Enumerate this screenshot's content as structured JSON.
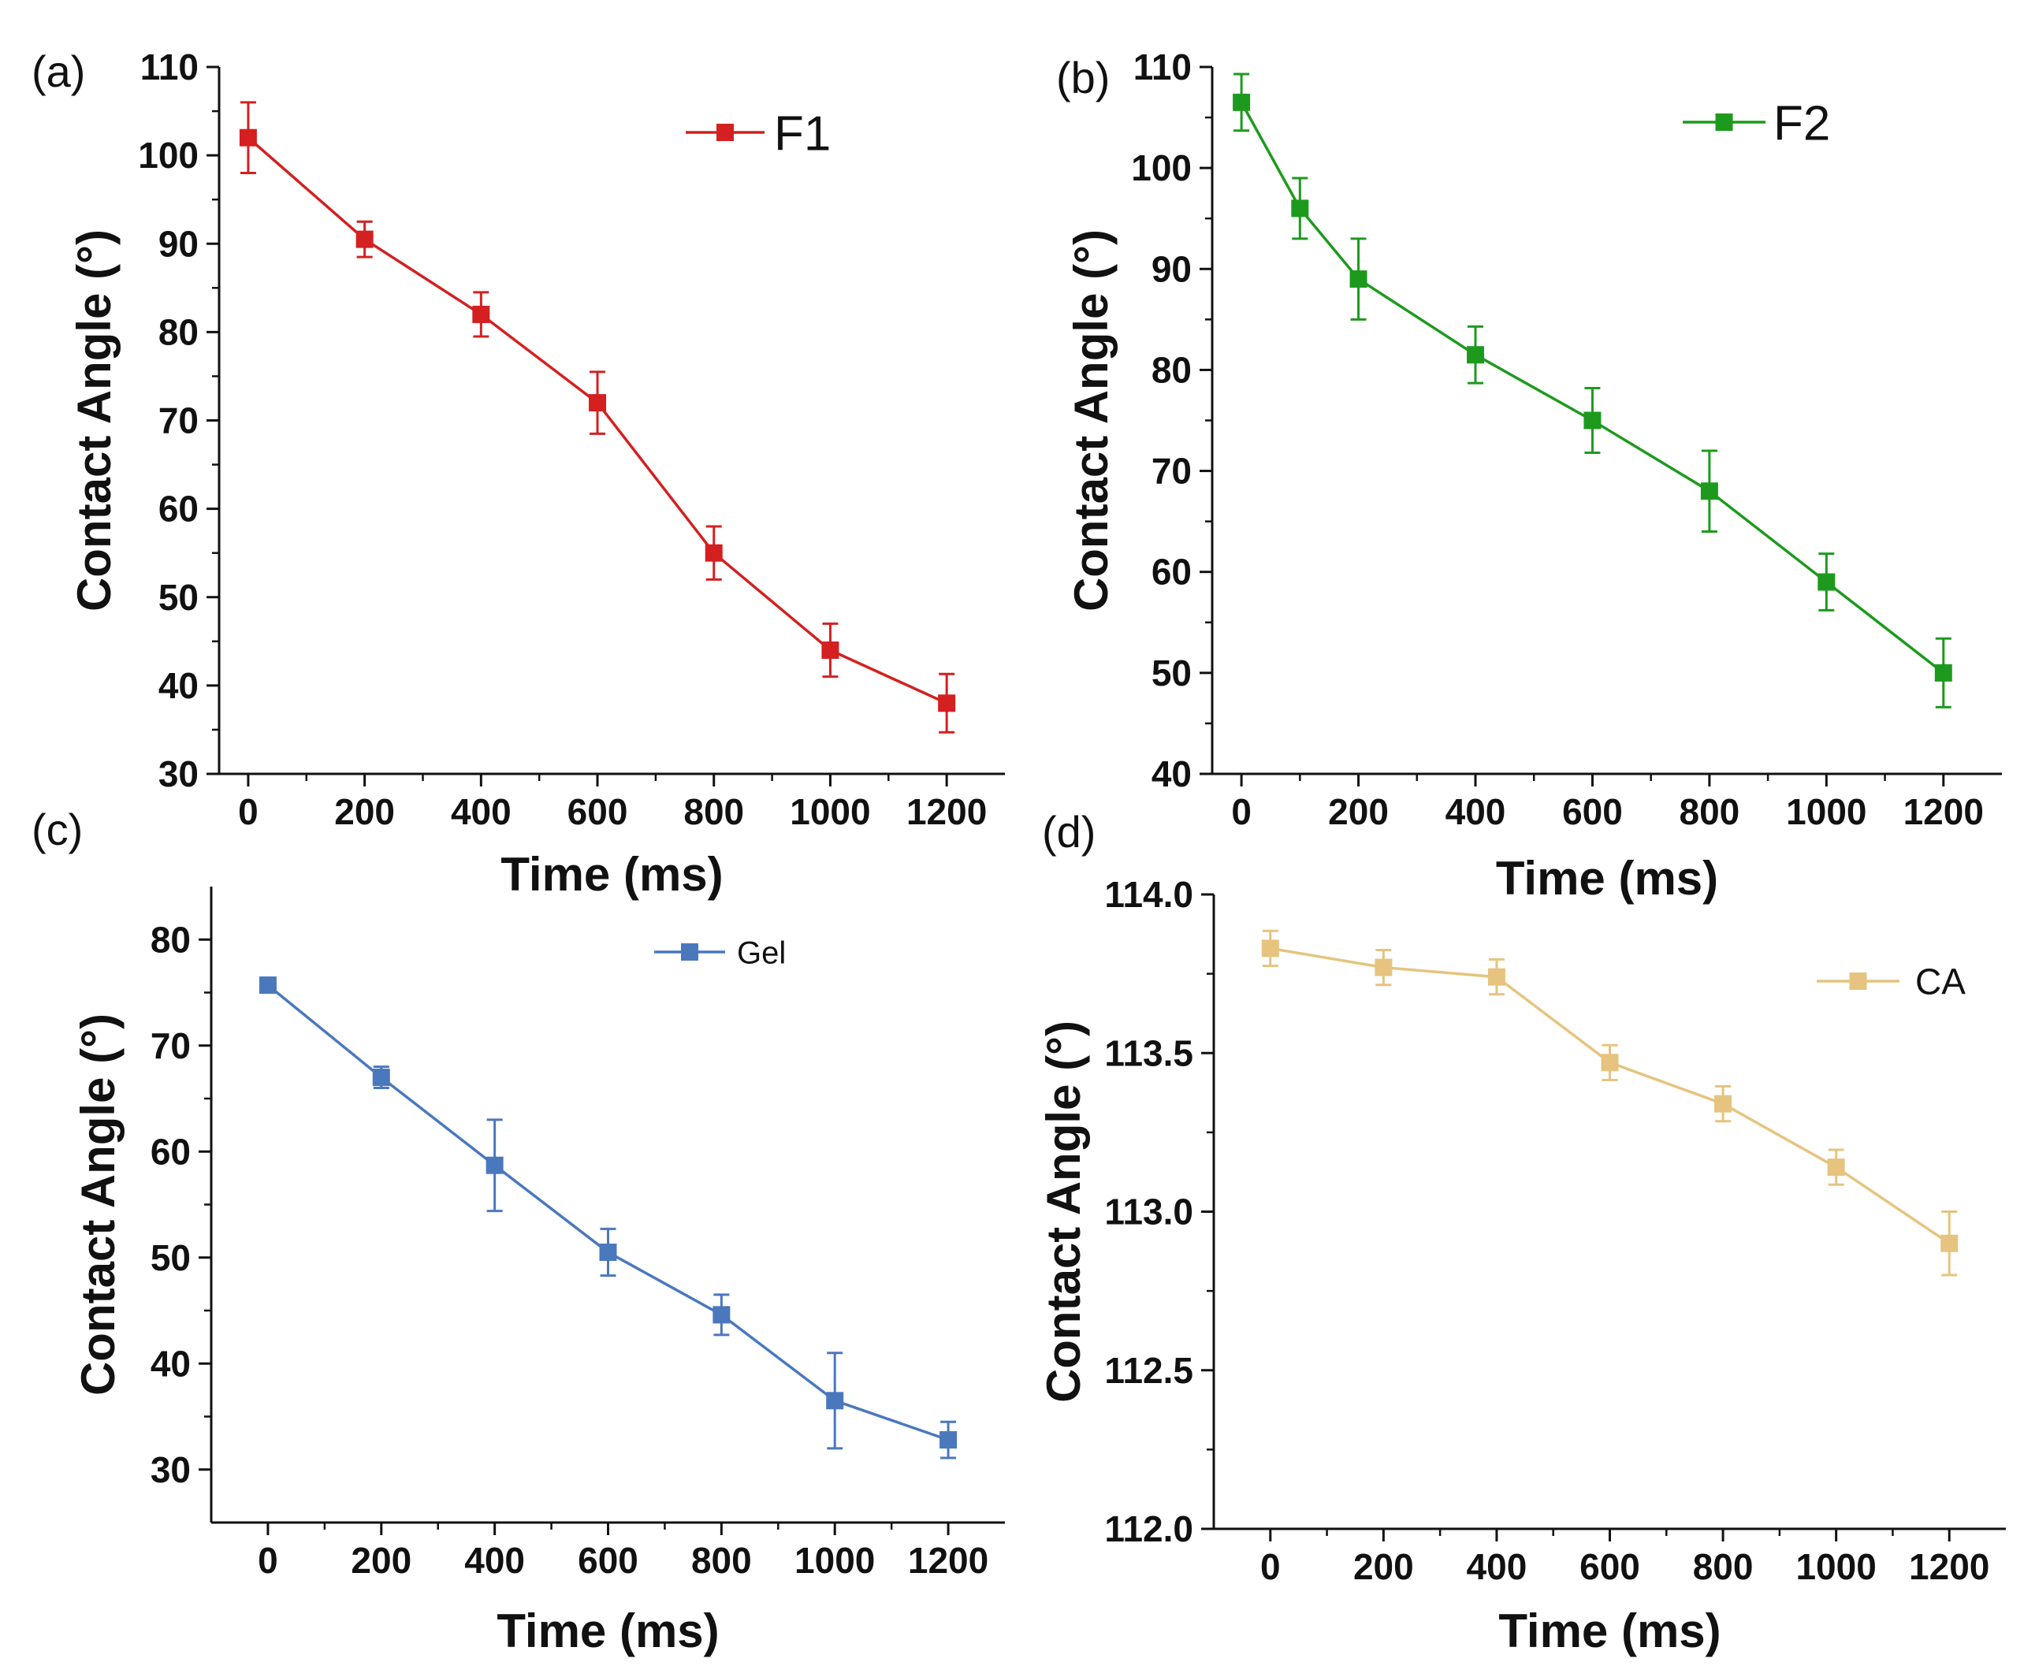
{
  "chart_data": [
    {
      "panel_label": "(a)",
      "type": "line",
      "color": "#d42020",
      "series": [
        {
          "name": "F1",
          "x": [
            0,
            200,
            400,
            600,
            800,
            1000,
            1200
          ],
          "y": [
            102,
            90.5,
            82,
            72,
            55,
            44,
            38
          ],
          "error": [
            4,
            2,
            2.5,
            3.5,
            3,
            3,
            3.3
          ]
        }
      ],
      "xlabel": "Time (ms)",
      "ylabel": "Contact Angle (°)",
      "xlim": [
        -50,
        1300
      ],
      "ylim": [
        30,
        110
      ],
      "xticks": [
        0,
        200,
        400,
        600,
        800,
        1000,
        1200
      ],
      "yticks": [
        30,
        40,
        50,
        60,
        70,
        80,
        90,
        100,
        110
      ],
      "ytick_labels": [
        "30",
        "40",
        "50",
        "60",
        "70",
        "80",
        "90",
        "100",
        "110"
      ],
      "legend": "top-right",
      "grid": false
    },
    {
      "panel_label": "(b)",
      "type": "line",
      "color": "#1d9a1d",
      "series": [
        {
          "name": "F2",
          "x": [
            0,
            100,
            200,
            400,
            600,
            800,
            1000,
            1200
          ],
          "y": [
            106.5,
            96,
            89,
            81.5,
            75,
            68,
            59,
            50
          ],
          "error": [
            2.8,
            3,
            4,
            2.8,
            3.2,
            4,
            2.8,
            3.4
          ]
        }
      ],
      "xlabel": "Time (ms)",
      "ylabel": "Contact Angle (°)",
      "xlim": [
        -50,
        1300
      ],
      "ylim": [
        40,
        110
      ],
      "xticks": [
        0,
        200,
        400,
        600,
        800,
        1000,
        1200
      ],
      "yticks": [
        40,
        50,
        60,
        70,
        80,
        90,
        100,
        110
      ],
      "ytick_labels": [
        "40",
        "50",
        "60",
        "70",
        "80",
        "90",
        "100",
        "110"
      ],
      "legend": "top-right",
      "grid": false
    },
    {
      "panel_label": "(c)",
      "type": "line",
      "color": "#4a78bd",
      "series": [
        {
          "name": "Gel",
          "x": [
            0,
            200,
            400,
            600,
            800,
            1000,
            1200
          ],
          "y": [
            75.7,
            67,
            58.7,
            50.5,
            44.6,
            36.5,
            32.8
          ],
          "error": [
            0.6,
            1,
            4.3,
            2.2,
            1.9,
            4.5,
            1.7
          ]
        }
      ],
      "xlabel": "Time (ms)",
      "ylabel": "Contact Angle (°)",
      "xlim": [
        -100,
        1300
      ],
      "ylim": [
        25,
        85
      ],
      "xticks": [
        0,
        200,
        400,
        600,
        800,
        1000,
        1200
      ],
      "yticks": [
        30,
        40,
        50,
        60,
        70,
        80
      ],
      "ytick_labels": [
        "30",
        "40",
        "50",
        "60",
        "70",
        "80"
      ],
      "legend": "top-center",
      "grid": false
    },
    {
      "panel_label": "(d)",
      "type": "line",
      "color": "#e6c47f",
      "series": [
        {
          "name": "CA",
          "x": [
            0,
            200,
            400,
            600,
            800,
            1000,
            1200
          ],
          "y": [
            113.83,
            113.77,
            113.74,
            113.47,
            113.34,
            113.14,
            112.9
          ],
          "error": [
            0.055,
            0.055,
            0.055,
            0.055,
            0.055,
            0.055,
            0.1
          ]
        }
      ],
      "xlabel": "Time (ms)",
      "ylabel": "Contact Angle (°)",
      "xlim": [
        -100,
        1300
      ],
      "ylim": [
        112,
        114
      ],
      "xticks": [
        0,
        200,
        400,
        600,
        800,
        1000,
        1200
      ],
      "yticks": [
        112,
        112.5,
        113,
        113.5,
        114
      ],
      "ytick_labels": [
        "112.0",
        "112.5",
        "113.0",
        "113.5",
        "114.0"
      ],
      "legend": "top-right",
      "grid": false
    }
  ]
}
